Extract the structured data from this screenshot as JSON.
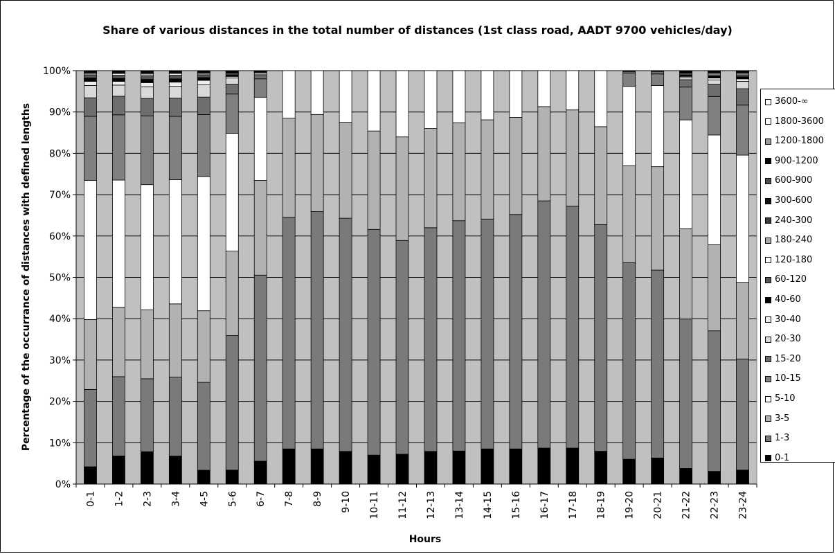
{
  "chart_data": {
    "type": "bar",
    "stacked": true,
    "normalized": true,
    "title": "Share of various distances in the total number of distances (1st class road, AADT 9700 vehicles/day)",
    "xlabel": "Hours",
    "ylabel": "Percentage of the occurrance of distances with defined lengths",
    "ylim": [
      0,
      100
    ],
    "y_ticks": [
      "0%",
      "10%",
      "20%",
      "30%",
      "40%",
      "50%",
      "60%",
      "70%",
      "80%",
      "90%",
      "100%"
    ],
    "grid": true,
    "legend_position": "right",
    "categories": [
      "0-1",
      "1-2",
      "2-3",
      "3-4",
      "4-5",
      "5-6",
      "6-7",
      "7-8",
      "8-9",
      "9-10",
      "10-11",
      "11-12",
      "12-13",
      "13-14",
      "14-15",
      "15-16",
      "16-17",
      "17-18",
      "18-19",
      "19-20",
      "20-21",
      "21-22",
      "22-23",
      "23-24"
    ],
    "series": [
      {
        "name": "0-1",
        "color": "#000000",
        "values": [
          4.2,
          6.8,
          7.8,
          6.8,
          3.4,
          3.4,
          5.6,
          8.5,
          8.5,
          7.9,
          7.0,
          7.2,
          7.9,
          8.0,
          8.5,
          8.5,
          8.7,
          8.7,
          7.9,
          6.0,
          6.3,
          3.8,
          3.1,
          3.4
        ]
      },
      {
        "name": "1-3",
        "color": "#7a7a7a",
        "values": [
          18.8,
          19.2,
          17.6,
          19.2,
          21.6,
          32.8,
          45.6,
          56.0,
          57.4,
          56.4,
          54.6,
          51.6,
          54.1,
          55.7,
          55.6,
          56.7,
          59.8,
          58.5,
          54.6,
          47.5,
          45.4,
          36.4,
          34.3,
          27.1
        ]
      },
      {
        "name": "3-5",
        "color": "#b2b2b2",
        "values": [
          17.0,
          16.8,
          16.6,
          17.8,
          17.6,
          20.6,
          23.2,
          24.0,
          23.5,
          23.2,
          23.8,
          25.0,
          24.0,
          23.7,
          24.0,
          23.5,
          22.8,
          23.3,
          23.6,
          23.4,
          25.0,
          22.0,
          21.0,
          18.7
        ]
      },
      {
        "name": "5-10",
        "color": "#ffffff",
        "values": [
          33.8,
          30.8,
          30.2,
          30.2,
          33.0,
          28.7,
          20.4,
          11.5,
          10.6,
          12.5,
          14.6,
          16.0,
          14.0,
          12.6,
          11.9,
          11.3,
          8.7,
          9.5,
          13.5,
          19.2,
          19.6,
          26.5,
          26.8,
          31.0
        ]
      },
      {
        "name": "10-15",
        "color": "#808080",
        "values": [
          15.6,
          15.8,
          16.6,
          15.4,
          15.2,
          9.6,
          4.5,
          0,
          0,
          0,
          0,
          0,
          0,
          0,
          0,
          0,
          0,
          0,
          0,
          3.2,
          2.8,
          8.0,
          9.4,
          12.2
        ]
      },
      {
        "name": "15-20",
        "color": "#6e6e6e",
        "values": [
          4.5,
          4.5,
          4.2,
          4.4,
          4.3,
          2.4,
          1.0,
          0,
          0,
          0,
          0,
          0,
          0,
          0,
          0,
          0,
          0,
          0,
          0,
          0.4,
          0.6,
          1.8,
          3.0,
          4.0
        ]
      },
      {
        "name": "20-30",
        "color": "#d9d9d9",
        "values": [
          3.0,
          2.7,
          2.8,
          2.9,
          3.0,
          1.5,
          0.4,
          0,
          0,
          0,
          0,
          0,
          0,
          0,
          0,
          0,
          0,
          0,
          0,
          0,
          0,
          0.5,
          1.0,
          1.8
        ]
      },
      {
        "name": "30-40",
        "color": "#eeeeee",
        "values": [
          1.0,
          0.9,
          1.0,
          1.0,
          1.1,
          0.4,
          0.2,
          0,
          0,
          0,
          0,
          0,
          0,
          0,
          0,
          0,
          0,
          0,
          0,
          0,
          0,
          0.3,
          0.5,
          0.6
        ]
      },
      {
        "name": "40-60",
        "color": "#000000",
        "values": [
          0.8,
          0.7,
          0.8,
          0.8,
          0.7,
          0.3,
          0.1,
          0,
          0,
          0,
          0,
          0,
          0,
          0,
          0,
          0,
          0,
          0,
          0,
          0.1,
          0.1,
          0.3,
          0.4,
          0.5
        ]
      },
      {
        "name": "60-120",
        "color": "#555555",
        "values": [
          0.8,
          0.8,
          0.9,
          0.9,
          0.7,
          0.3,
          0.1,
          0,
          0,
          0,
          0,
          0,
          0,
          0,
          0,
          0,
          0,
          0,
          0,
          0.1,
          0.1,
          0.3,
          0.4,
          0.5
        ]
      },
      {
        "name": "120-180",
        "color": "#ffffff",
        "values": [
          0.3,
          0.4,
          0.4,
          0.4,
          0.3,
          0.2,
          0.1,
          0,
          0,
          0,
          0,
          0,
          0,
          0,
          0,
          0,
          0,
          0,
          0,
          0,
          0,
          0.2,
          0.3,
          0.3
        ]
      },
      {
        "name": "180-240",
        "color": "#aaaaaa",
        "values": [
          0.2,
          0.2,
          0.2,
          0.2,
          0.2,
          0.1,
          0.1,
          0,
          0,
          0,
          0,
          0,
          0,
          0,
          0,
          0,
          0,
          0,
          0,
          0,
          0,
          0.1,
          0.2,
          0.2
        ]
      },
      {
        "name": "240-300",
        "color": "#3a3a3a",
        "values": [
          0.1,
          0.1,
          0.2,
          0.1,
          0.1,
          0.1,
          0,
          0,
          0,
          0,
          0,
          0,
          0,
          0,
          0,
          0,
          0,
          0,
          0,
          0,
          0,
          0.1,
          0.1,
          0.1
        ]
      },
      {
        "name": "300-600",
        "color": "#111111",
        "values": [
          0.1,
          0.1,
          0.1,
          0.1,
          0.1,
          0.1,
          0,
          0,
          0,
          0,
          0,
          0,
          0,
          0,
          0,
          0,
          0,
          0,
          0,
          0,
          0,
          0.1,
          0.1,
          0.1
        ]
      },
      {
        "name": "600-900",
        "color": "#4d4d4d",
        "values": [
          0.1,
          0.1,
          0.1,
          0.1,
          0.1,
          0.1,
          0,
          0,
          0,
          0,
          0,
          0,
          0,
          0,
          0,
          0,
          0,
          0,
          0,
          0,
          0,
          0.1,
          0.1,
          0.1
        ]
      },
      {
        "name": "900-1200",
        "color": "#000000",
        "values": [
          0.1,
          0.1,
          0.1,
          0.1,
          0.1,
          0.1,
          0,
          0,
          0,
          0,
          0,
          0,
          0,
          0,
          0,
          0,
          0,
          0,
          0,
          0,
          0,
          0.1,
          0.1,
          0.1
        ]
      },
      {
        "name": "1200-1800",
        "color": "#999999",
        "values": [
          0.1,
          0.1,
          0.1,
          0.1,
          0.1,
          0.1,
          0,
          0,
          0,
          0,
          0,
          0,
          0,
          0,
          0,
          0,
          0,
          0,
          0,
          0,
          0,
          0.1,
          0.1,
          0.1
        ]
      },
      {
        "name": "1800-3600",
        "color": "#ffffff",
        "values": [
          0,
          0,
          0,
          0,
          0,
          0,
          0,
          0,
          0,
          0,
          0,
          0,
          0,
          0,
          0,
          0,
          0,
          0,
          0,
          0,
          0,
          0,
          0,
          0
        ]
      },
      {
        "name": "3600-∞",
        "color": "#ffffff",
        "values": [
          0,
          0,
          0,
          0,
          0,
          0,
          0,
          0,
          0,
          0,
          0,
          0,
          0,
          0,
          0,
          0,
          0,
          0,
          0,
          0,
          0,
          0,
          0,
          0
        ]
      }
    ]
  }
}
